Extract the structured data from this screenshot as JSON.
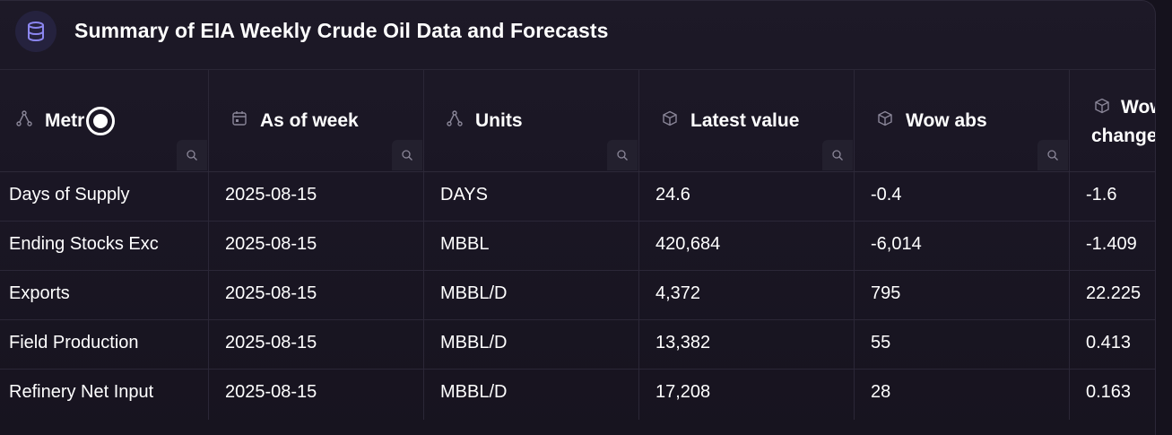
{
  "header": {
    "title": "Summary of EIA Weekly Crude Oil Data and Forecasts",
    "icon": "database-icon"
  },
  "colors": {
    "background": "#15121d",
    "panel": "#1c1826",
    "header_icon_bg": "#25223e",
    "header_icon_fg": "#8b86f0",
    "grid_line": "#2b2737",
    "text": "#ffffff",
    "muted_icon": "#8a8698"
  },
  "table": {
    "columns": [
      {
        "label": "Metric",
        "visible_label": "Metr",
        "icon": "hierarchy-icon"
      },
      {
        "label": "As of week",
        "icon": "calendar-icon"
      },
      {
        "label": "Units",
        "icon": "hierarchy-icon"
      },
      {
        "label": "Latest value",
        "icon": "cube-icon"
      },
      {
        "label": "Wow abs",
        "icon": "cube-icon"
      },
      {
        "label_line1": "Wow",
        "label_line2": "change",
        "icon": "cube-icon"
      }
    ],
    "rows": [
      {
        "metric": "Days of Supply",
        "week": "2025-08-15",
        "units": "DAYS",
        "latest": "24.6",
        "wow_abs": "-0.4",
        "wow_change": "-1.6"
      },
      {
        "metric": "Ending Stocks Exc",
        "week": "2025-08-15",
        "units": "MBBL",
        "latest": "420,684",
        "wow_abs": "-6,014",
        "wow_change": "-1.409"
      },
      {
        "metric": "Exports",
        "week": "2025-08-15",
        "units": "MBBL/D",
        "latest": "4,372",
        "wow_abs": "795",
        "wow_change": "22.225"
      },
      {
        "metric": "Field Production",
        "week": "2025-08-15",
        "units": "MBBL/D",
        "latest": "13,382",
        "wow_abs": "55",
        "wow_change": "0.413"
      },
      {
        "metric": "Refinery Net Input",
        "week": "2025-08-15",
        "units": "MBBL/D",
        "latest": "17,208",
        "wow_abs": "28",
        "wow_change": "0.163"
      }
    ]
  }
}
